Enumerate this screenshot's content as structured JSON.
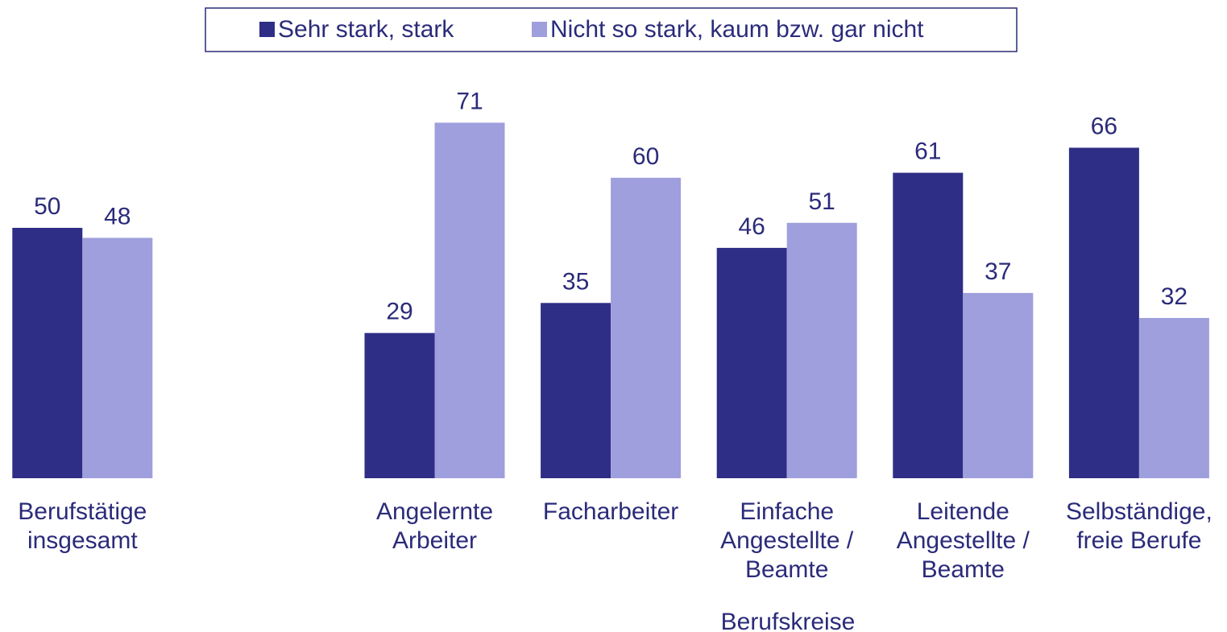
{
  "chart_data": {
    "type": "bar",
    "categories": [
      "Berufstätige\ninsgesamt",
      null,
      "Angelernte\nArbeiter",
      "Facharbeiter",
      "Einfache\nAngestellte /\nBeamte",
      "Leitende\nAngestellte /\nBeamte",
      "Selbständige,\nfreie Berufe"
    ],
    "series": [
      {
        "name": "Sehr stark, stark",
        "color": "#2e2e87",
        "values": [
          50,
          null,
          29,
          35,
          46,
          61,
          66
        ]
      },
      {
        "name": "Nicht so stark, kaum bzw. gar nicht",
        "color": "#9f9fdd",
        "values": [
          48,
          null,
          71,
          60,
          51,
          37,
          32
        ]
      }
    ],
    "x_label": "Berufskreise",
    "ylim": [
      0,
      80
    ],
    "legend": "top"
  }
}
